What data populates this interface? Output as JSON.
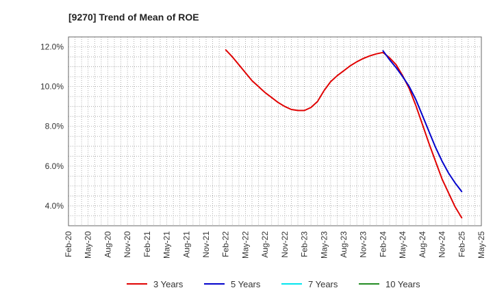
{
  "chart_data": {
    "type": "line",
    "title": "[9270]  Trend of Mean of ROE",
    "xlabel": "",
    "ylabel": "",
    "ylim": [
      3.0,
      12.5
    ],
    "y_ticks": [
      4.0,
      6.0,
      8.0,
      10.0,
      12.0
    ],
    "y_tick_labels": [
      "4.0%",
      "6.0%",
      "8.0%",
      "10.0%",
      "12.0%"
    ],
    "x_tick_labels": [
      "Feb-20",
      "May-20",
      "Aug-20",
      "Nov-20",
      "Feb-21",
      "May-21",
      "Aug-21",
      "Nov-21",
      "Feb-22",
      "May-22",
      "Aug-22",
      "Nov-22",
      "Feb-23",
      "May-23",
      "Aug-23",
      "Nov-23",
      "Feb-24",
      "May-24",
      "Aug-24",
      "Nov-24",
      "Feb-25",
      "May-25"
    ],
    "grid": true,
    "legend_position": "bottom",
    "series": [
      {
        "name": "3 Years",
        "color": "#e00000",
        "x": [
          "Feb-22",
          "Mar-22",
          "Apr-22",
          "May-22",
          "Jun-22",
          "Jul-22",
          "Aug-22",
          "Sep-22",
          "Oct-22",
          "Nov-22",
          "Dec-22",
          "Jan-23",
          "Feb-23",
          "Mar-23",
          "Apr-23",
          "May-23",
          "Jun-23",
          "Jul-23",
          "Aug-23",
          "Sep-23",
          "Oct-23",
          "Nov-23",
          "Dec-23",
          "Jan-24",
          "Feb-24",
          "Mar-24",
          "Apr-24",
          "May-24",
          "Jun-24",
          "Jul-24",
          "Aug-24",
          "Sep-24",
          "Oct-24",
          "Nov-24",
          "Dec-24",
          "Jan-25",
          "Feb-25"
        ],
        "values": [
          11.85,
          11.5,
          11.1,
          10.7,
          10.3,
          10.0,
          9.7,
          9.45,
          9.2,
          9.0,
          8.85,
          8.8,
          8.8,
          8.95,
          9.25,
          9.8,
          10.25,
          10.55,
          10.8,
          11.05,
          11.25,
          11.42,
          11.55,
          11.65,
          11.72,
          11.45,
          11.1,
          10.55,
          9.9,
          9.05,
          8.1,
          7.15,
          6.25,
          5.35,
          4.65,
          3.95,
          3.4
        ]
      },
      {
        "name": "5 Years",
        "color": "#0000cc",
        "x": [
          "Feb-24",
          "Mar-24",
          "Apr-24",
          "May-24",
          "Jun-24",
          "Jul-24",
          "Aug-24",
          "Sep-24",
          "Oct-24",
          "Nov-24",
          "Dec-24",
          "Jan-25",
          "Feb-25"
        ],
        "values": [
          11.8,
          11.35,
          10.95,
          10.5,
          10.0,
          9.35,
          8.55,
          7.75,
          6.95,
          6.25,
          5.65,
          5.15,
          4.72
        ]
      },
      {
        "name": "7 Years",
        "color": "#00e5ee",
        "x": [],
        "values": []
      },
      {
        "name": "10 Years",
        "color": "#228b22",
        "x": [],
        "values": []
      }
    ]
  }
}
